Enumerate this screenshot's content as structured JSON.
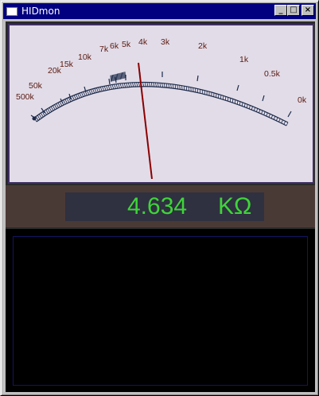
{
  "window": {
    "title": "HIDmon"
  },
  "titlebar_buttons": {
    "minimize": "_",
    "maximize": "□",
    "close": "×"
  },
  "meter": {
    "scale_labels": [
      "500k",
      "50k",
      "20k",
      "15k",
      "10k",
      "7k",
      "6k",
      "5k",
      "4k",
      "3k",
      "2k",
      "1k",
      "0.5k",
      "0k"
    ],
    "needle_color": "#8b0000",
    "arc_color": "#1c2a4a",
    "label_color": "#5a1a10"
  },
  "readout": {
    "value": "4.634",
    "unit": "KΩ",
    "color": "#3fd43a"
  }
}
